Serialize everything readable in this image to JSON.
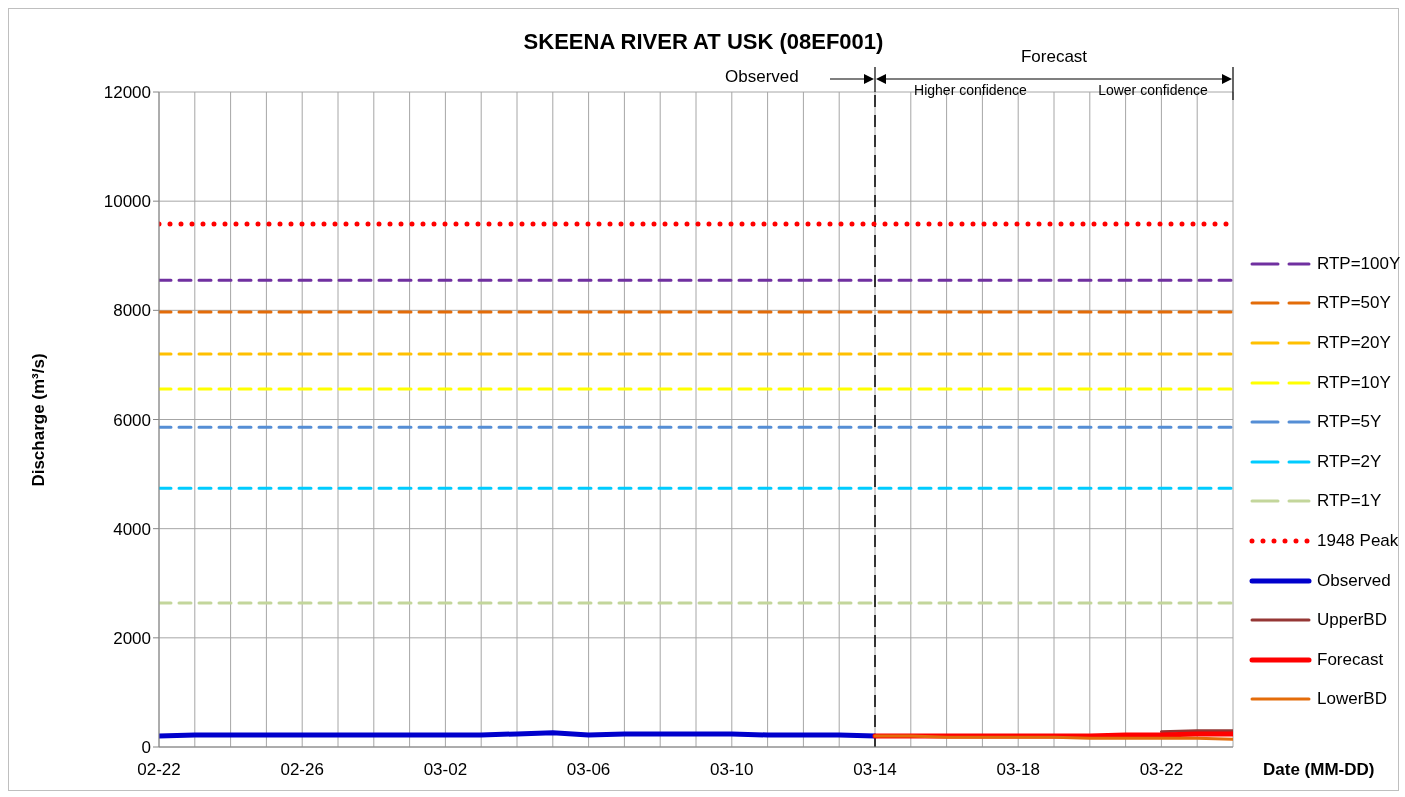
{
  "chart_data": {
    "type": "line",
    "title": "SKEENA RIVER AT USK (08EF001)",
    "xlabel": "Date (MM-DD)",
    "ylabel": "Discharge (m³/s)",
    "xlim": [
      "--02-22",
      "--03-24"
    ],
    "xticks": [
      {
        "value": "--02-22",
        "label": "02-22"
      },
      {
        "value": "--02-23",
        "label": null
      },
      {
        "value": "--02-24",
        "label": null
      },
      {
        "value": "--02-25",
        "label": null
      },
      {
        "value": "--02-26",
        "label": "02-26"
      },
      {
        "value": "--02-27",
        "label": null
      },
      {
        "value": "--02-28",
        "label": null
      },
      {
        "value": "--03-01",
        "label": null
      },
      {
        "value": "--03-02",
        "label": "03-02"
      },
      {
        "value": "--03-03",
        "label": null
      },
      {
        "value": "--03-04",
        "label": null
      },
      {
        "value": "--03-05",
        "label": null
      },
      {
        "value": "--03-06",
        "label": "03-06"
      },
      {
        "value": "--03-07",
        "label": null
      },
      {
        "value": "--03-08",
        "label": null
      },
      {
        "value": "--03-09",
        "label": null
      },
      {
        "value": "--03-10",
        "label": "03-10"
      },
      {
        "value": "--03-11",
        "label": null
      },
      {
        "value": "--03-12",
        "label": null
      },
      {
        "value": "--03-13",
        "label": null
      },
      {
        "value": "--03-14",
        "label": "03-14"
      },
      {
        "value": "--03-15",
        "label": null
      },
      {
        "value": "--03-16",
        "label": null
      },
      {
        "value": "--03-17",
        "label": null
      },
      {
        "value": "--03-18",
        "label": "03-18"
      },
      {
        "value": "--03-19",
        "label": null
      },
      {
        "value": "--03-20",
        "label": null
      },
      {
        "value": "--03-21",
        "label": null
      },
      {
        "value": "--03-22",
        "label": "03-22"
      },
      {
        "value": "--03-23",
        "label": null
      },
      {
        "value": "--03-24",
        "label": null
      }
    ],
    "ylim": [
      0,
      12000
    ],
    "yticks": [
      0,
      2000,
      4000,
      6000,
      8000,
      10000,
      12000
    ],
    "grid": true,
    "legend": "right",
    "ref_lines": [
      {
        "axis": "x",
        "value": "--03-14",
        "color": "#000000",
        "line_style": "dashed"
      }
    ],
    "annotations": [
      "Observed",
      "Forecast",
      "Higher confidence",
      "Lower confidence"
    ],
    "series": [
      {
        "name": "RTP=100Y",
        "color": "#7030a0",
        "line_style": "dashed",
        "x": [
          "--02-22",
          "--03-24"
        ],
        "values": [
          8550,
          8550
        ]
      },
      {
        "name": "RTP=50Y",
        "color": "#e36c09",
        "line_style": "dashed",
        "x": [
          "--02-22",
          "--03-24"
        ],
        "values": [
          7970,
          7970
        ]
      },
      {
        "name": "RTP=20Y",
        "color": "#ffc000",
        "line_style": "dashed",
        "x": [
          "--02-22",
          "--03-24"
        ],
        "values": [
          7200,
          7200
        ]
      },
      {
        "name": "RTP=10Y",
        "color": "#ffff00",
        "line_style": "dashed",
        "x": [
          "--02-22",
          "--03-24"
        ],
        "values": [
          6560,
          6560
        ]
      },
      {
        "name": "RTP=5Y",
        "color": "#558ed5",
        "line_style": "dashed",
        "x": [
          "--02-22",
          "--03-24"
        ],
        "values": [
          5860,
          5860
        ]
      },
      {
        "name": "RTP=2Y",
        "color": "#00ccff",
        "line_style": "dashed",
        "x": [
          "--02-22",
          "--03-24"
        ],
        "values": [
          4740,
          4740
        ]
      },
      {
        "name": "RTP=1Y",
        "color": "#c3d69b",
        "line_style": "dashed",
        "x": [
          "--02-22",
          "--03-24"
        ],
        "values": [
          2640,
          2640
        ]
      },
      {
        "name": "1948 Peak",
        "color": "#ff0000",
        "line_style": "dotted",
        "x": [
          "--02-22",
          "--03-24"
        ],
        "values": [
          9580,
          9580
        ]
      },
      {
        "name": "Observed",
        "color": "#0000cc",
        "line_style": "solid",
        "x": [
          "--02-22",
          "--02-23",
          "--02-24",
          "--02-25",
          "--02-26",
          "--02-27",
          "--02-28",
          "--03-01",
          "--03-02",
          "--03-03",
          "--03-04",
          "--03-05",
          "--03-06",
          "--03-07",
          "--03-08",
          "--03-09",
          "--03-10",
          "--03-11",
          "--03-12",
          "--03-13",
          "--03-14"
        ],
        "values": [
          200,
          220,
          220,
          220,
          220,
          220,
          220,
          220,
          220,
          220,
          240,
          260,
          220,
          240,
          240,
          240,
          240,
          220,
          220,
          220,
          200
        ]
      },
      {
        "name": "UpperBD",
        "color": "#953735",
        "line_style": "solid",
        "x": [
          "--03-22",
          "--03-23",
          "--03-24"
        ],
        "values": [
          280,
          300,
          300
        ]
      },
      {
        "name": "Forecast",
        "color": "#ff0000",
        "line_style": "solid",
        "x": [
          "--03-14",
          "--03-15",
          "--03-16",
          "--03-17",
          "--03-18",
          "--03-19",
          "--03-20",
          "--03-21",
          "--03-22",
          "--03-23",
          "--03-24"
        ],
        "values": [
          200,
          200,
          200,
          200,
          200,
          200,
          200,
          220,
          220,
          240,
          240
        ]
      },
      {
        "name": "LowerBD",
        "color": "#e46c0a",
        "line_style": "solid",
        "x": [
          "--03-14",
          "--03-15",
          "--03-16",
          "--03-17",
          "--03-18",
          "--03-19",
          "--03-20",
          "--03-21",
          "--03-22",
          "--03-23",
          "--03-24"
        ],
        "values": [
          200,
          200,
          180,
          180,
          180,
          180,
          160,
          160,
          160,
          160,
          140
        ]
      }
    ]
  }
}
